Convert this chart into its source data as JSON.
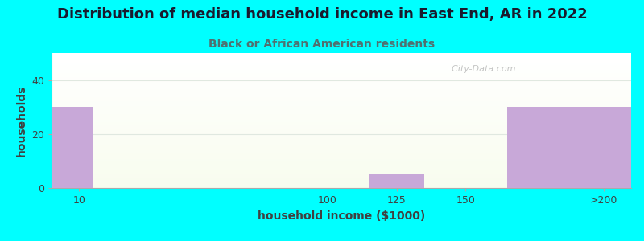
{
  "title": "Distribution of median household income in East End, AR in 2022",
  "subtitle": "Black or African American residents",
  "xlabel": "household income ($1000)",
  "ylabel": "households",
  "background_color": "#00FFFF",
  "bar_color": "#C8A8D8",
  "title_color": "#1a1a2e",
  "subtitle_color": "#507070",
  "axis_label_color": "#404040",
  "tick_label_color": "#404040",
  "grid_color": "#e0e8e0",
  "watermark": "  City-Data.com",
  "title_fontsize": 13,
  "subtitle_fontsize": 10,
  "axis_label_fontsize": 10,
  "tick_fontsize": 9,
  "ylim": [
    0,
    50
  ],
  "yticks": [
    0,
    20,
    40
  ],
  "xtick_positions": [
    10,
    100,
    125,
    150,
    200
  ],
  "xtick_labels": [
    "10",
    "100",
    "125",
    "150",
    ">200"
  ],
  "xlim": [
    0,
    210
  ],
  "bars": [
    {
      "x_left": 0,
      "x_right": 15,
      "height": 30
    },
    {
      "x_left": 115,
      "x_right": 135,
      "height": 5
    },
    {
      "x_left": 165,
      "x_right": 210,
      "height": 30
    }
  ]
}
